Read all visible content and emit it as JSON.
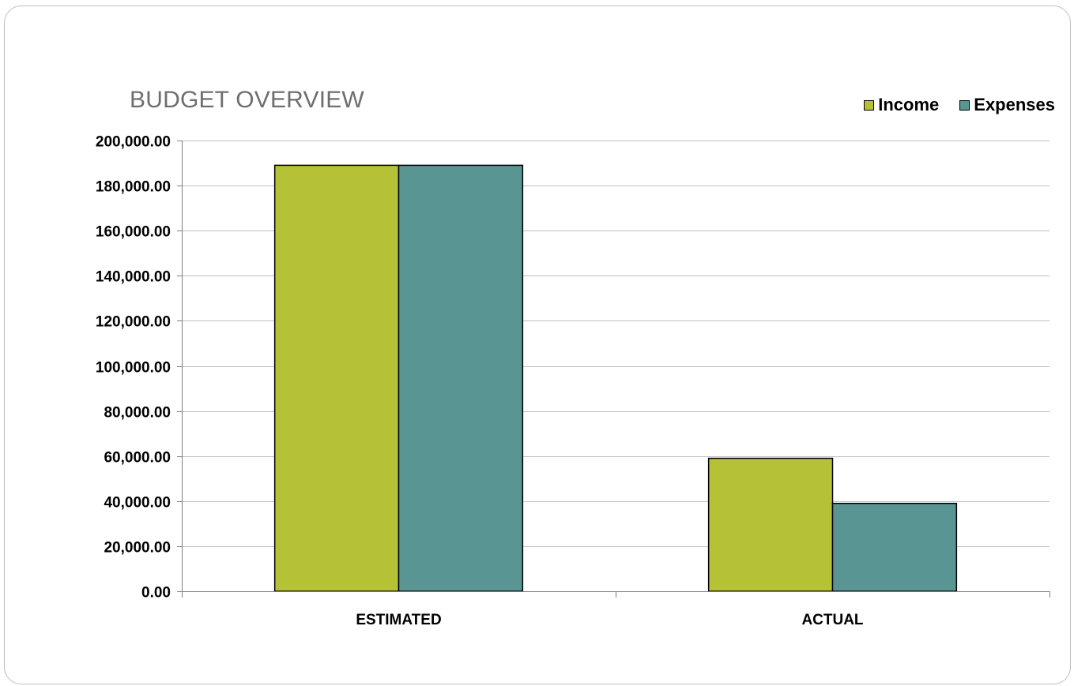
{
  "chart_data": {
    "type": "bar",
    "title": "BUDGET OVERVIEW",
    "categories": [
      "ESTIMATED",
      "ACTUAL"
    ],
    "series": [
      {
        "name": "Income",
        "values": [
          189000,
          59000
        ],
        "color": "#b5c236"
      },
      {
        "name": "Expenses",
        "values": [
          189000,
          39000
        ],
        "color": "#589593"
      }
    ],
    "ylim": [
      0,
      200000
    ],
    "yticks": [
      "0.00",
      "20,000.00",
      "40,000.00",
      "60,000.00",
      "80,000.00",
      "100,000.00",
      "120,000.00",
      "140,000.00",
      "160,000.00",
      "180,000.00",
      "200,000.00"
    ],
    "ytick_values": [
      0,
      20000,
      40000,
      60000,
      80000,
      100000,
      120000,
      140000,
      160000,
      180000,
      200000
    ],
    "grid": true,
    "legend_position": "top-right",
    "xlabel": "",
    "ylabel": ""
  }
}
